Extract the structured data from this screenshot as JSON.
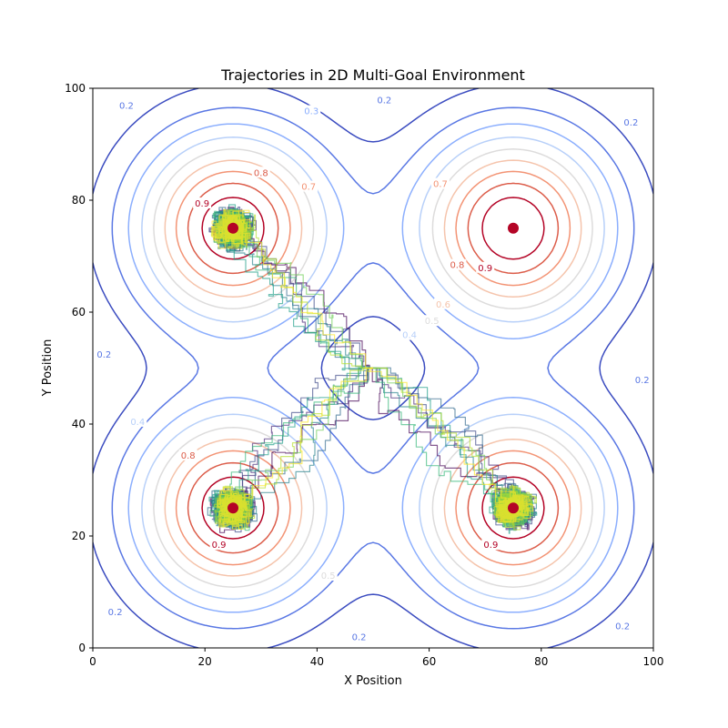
{
  "chart_data": {
    "type": "line",
    "title": "Trajectories in 2D Multi-Goal Environment",
    "xlabel": "X Position",
    "ylabel": "Y Position",
    "xlim": [
      0,
      100
    ],
    "ylim": [
      0,
      100
    ],
    "xticks": [
      "0",
      "20",
      "40",
      "60",
      "80",
      "100"
    ],
    "yticks": [
      "0",
      "20",
      "40",
      "60",
      "80",
      "100"
    ],
    "grid": false,
    "goals": [
      {
        "x": 25,
        "y": 75
      },
      {
        "x": 75,
        "y": 75
      },
      {
        "x": 25,
        "y": 25
      },
      {
        "x": 75,
        "y": 25
      }
    ],
    "goal_color": "#b40426",
    "contour_levels": [
      0.1,
      0.2,
      0.3,
      0.4,
      0.5,
      0.6,
      0.7,
      0.8,
      0.9
    ],
    "contour_colors": [
      "#3b4cc0",
      "#5a78e4",
      "#8caffe",
      "#b8d0f9",
      "#dddcdc",
      "#f5c4ac",
      "#f39475",
      "#dc5d4a",
      "#b40426"
    ],
    "contour_labels": [
      {
        "text": "0.2",
        "x": 6,
        "y": 97,
        "level": 0.2
      },
      {
        "text": "0.3",
        "x": 39,
        "y": 96,
        "level": 0.3
      },
      {
        "text": "0.2",
        "x": 52,
        "y": 98,
        "level": 0.2
      },
      {
        "text": "0.2",
        "x": 96,
        "y": 94,
        "level": 0.2
      },
      {
        "text": "0.8",
        "x": 30,
        "y": 85,
        "level": 0.8
      },
      {
        "text": "0.7",
        "x": 38.5,
        "y": 82.5,
        "level": 0.7
      },
      {
        "text": "0.9",
        "x": 19.5,
        "y": 79.5,
        "level": 0.9
      },
      {
        "text": "0.7",
        "x": 62,
        "y": 83,
        "level": 0.7
      },
      {
        "text": "0.8",
        "x": 65,
        "y": 68.5,
        "level": 0.8
      },
      {
        "text": "0.9",
        "x": 70,
        "y": 68,
        "level": 0.9
      },
      {
        "text": "0.6",
        "x": 62.5,
        "y": 61.5,
        "level": 0.6
      },
      {
        "text": "0.5",
        "x": 60.5,
        "y": 58.5,
        "level": 0.5
      },
      {
        "text": "0.4",
        "x": 56.5,
        "y": 56,
        "level": 0.4
      },
      {
        "text": "0.2",
        "x": 2,
        "y": 52.5,
        "level": 0.2
      },
      {
        "text": "0.2",
        "x": 98,
        "y": 48,
        "level": 0.2
      },
      {
        "text": "0.4",
        "x": 8,
        "y": 40.5,
        "level": 0.4
      },
      {
        "text": "0.8",
        "x": 17,
        "y": 34.5,
        "level": 0.8
      },
      {
        "text": "0.9",
        "x": 22.5,
        "y": 18.5,
        "level": 0.9
      },
      {
        "text": "0.9",
        "x": 71,
        "y": 18.5,
        "level": 0.9
      },
      {
        "text": "0.5",
        "x": 42,
        "y": 13,
        "level": 0.5
      },
      {
        "text": "0.2",
        "x": 4,
        "y": 6.5,
        "level": 0.2
      },
      {
        "text": "0.2",
        "x": 47.5,
        "y": 2,
        "level": 0.2
      },
      {
        "text": "0.2",
        "x": 94.5,
        "y": 4,
        "level": 0.2
      }
    ],
    "trajectories": {
      "count": 30,
      "colormap": "viridis",
      "start": [
        50,
        50
      ],
      "goals": [
        "top-left",
        "bottom-left",
        "bottom-right"
      ]
    }
  }
}
